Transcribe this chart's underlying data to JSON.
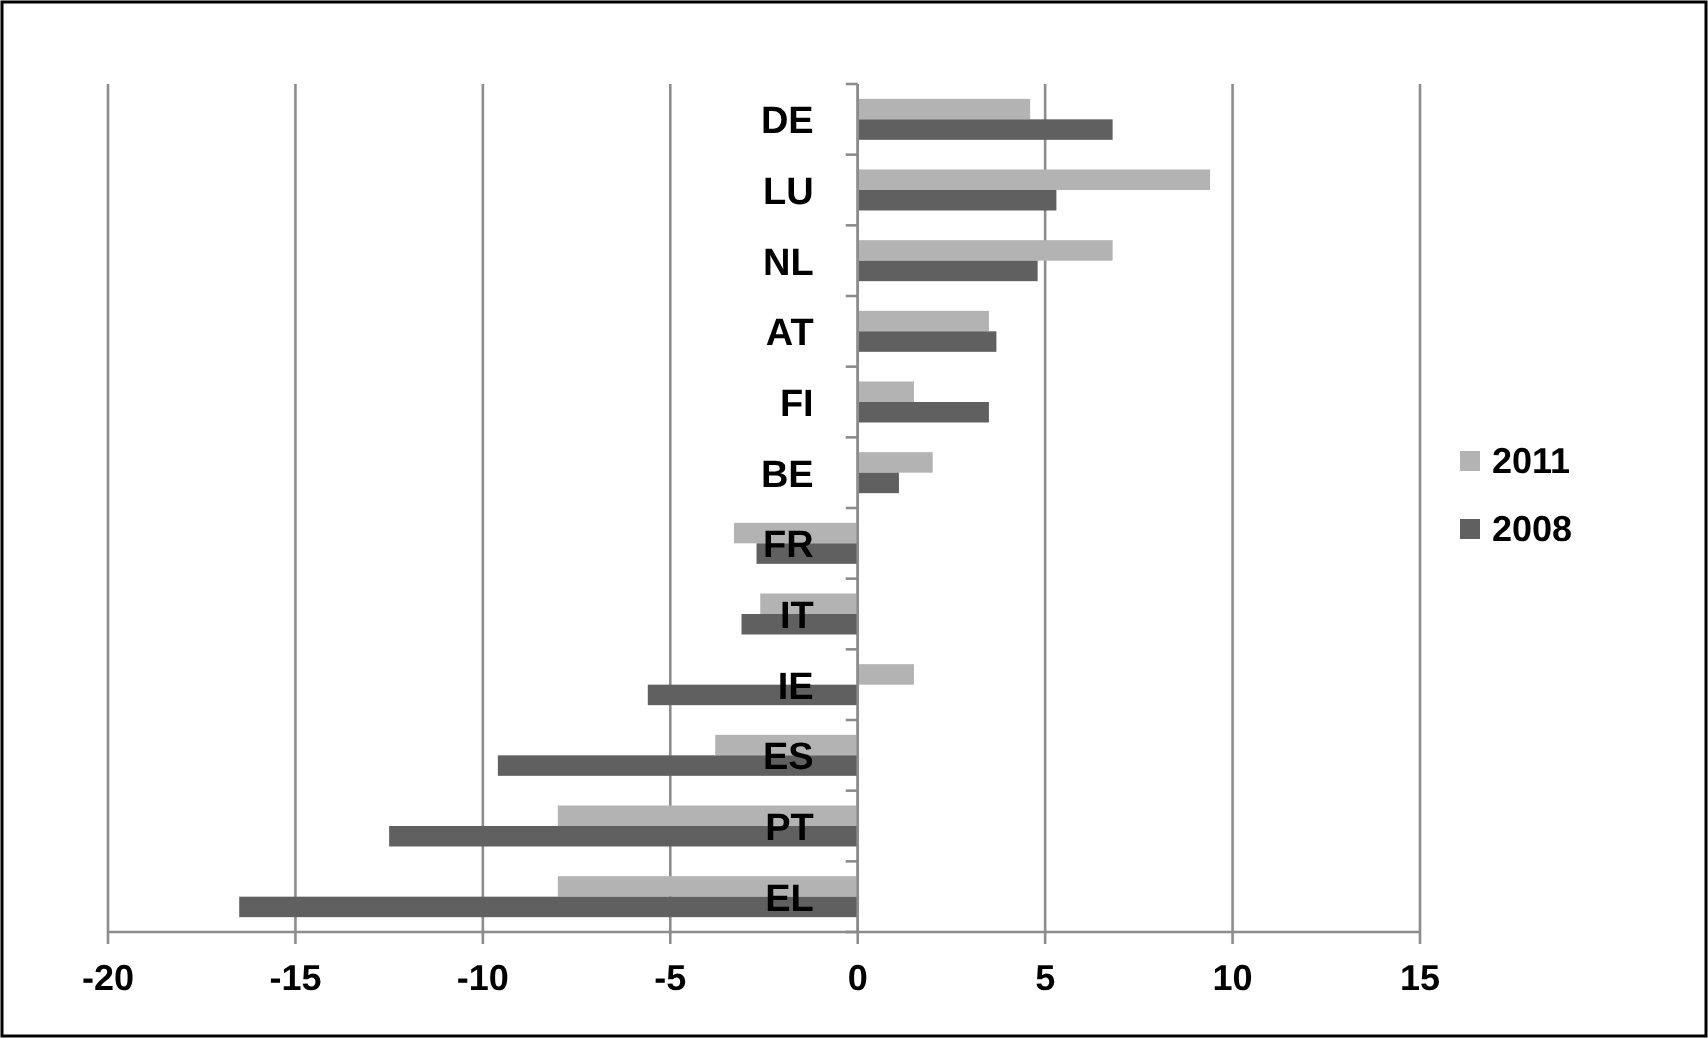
{
  "chart_data": {
    "type": "bar",
    "orientation": "horizontal",
    "categories": [
      "DE",
      "LU",
      "NL",
      "AT",
      "FI",
      "BE",
      "FR",
      "IT",
      "IE",
      "ES",
      "PT",
      "EL"
    ],
    "series": [
      {
        "name": "2011",
        "color": "#b3b3b3",
        "values": [
          4.6,
          9.4,
          6.8,
          3.5,
          1.5,
          2.0,
          -3.3,
          -2.6,
          1.5,
          -3.8,
          -8.0,
          -8.0
        ]
      },
      {
        "name": "2008",
        "color": "#606060",
        "values": [
          6.8,
          5.3,
          4.8,
          3.7,
          3.5,
          1.1,
          -2.7,
          -3.1,
          -5.6,
          -9.6,
          -12.5,
          -16.5
        ]
      }
    ],
    "xlim": [
      -20,
      15
    ],
    "xticks": [
      -20,
      -15,
      -10,
      -5,
      0,
      5,
      10,
      15
    ],
    "grid": "x",
    "legend": "right"
  }
}
